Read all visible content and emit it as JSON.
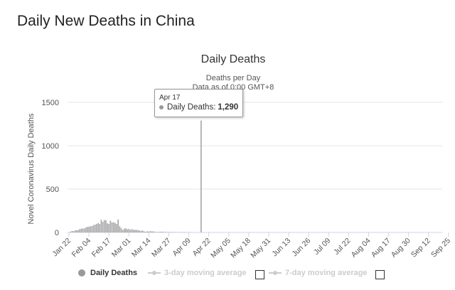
{
  "page": {
    "title": "Daily New Deaths in China"
  },
  "chart_data": {
    "type": "bar",
    "title": "Daily Deaths",
    "subtitle_line1": "Deaths per Day",
    "subtitle_line2": "Data as of 0:00 GMT+8",
    "ylabel": "Novel Coronavirus Daily Deaths",
    "xlabel": "",
    "ylim": [
      0,
      1500
    ],
    "yticks": [
      "0",
      "500",
      "1000",
      "1500"
    ],
    "xticks": [
      "Jan 22",
      "Feb 04",
      "Feb 17",
      "Mar 01",
      "Mar 14",
      "Mar 27",
      "Apr 09",
      "Apr 22",
      "May 05",
      "May 18",
      "May 31",
      "Jun 13",
      "Jun 26",
      "Jul 09",
      "Jul 22",
      "Aug 04",
      "Aug 17",
      "Aug 30",
      "Sep 12",
      "Sep 25"
    ],
    "start_date": "2020-01-22",
    "series": [
      {
        "name": "Daily Deaths",
        "color": "#a6a6a6",
        "values": [
          0,
          8,
          16,
          15,
          24,
          26,
          26,
          38,
          43,
          46,
          45,
          57,
          64,
          65,
          73,
          73,
          86,
          89,
          97,
          108,
          97,
          146,
          121,
          143,
          142,
          105,
          98,
          136,
          114,
          118,
          109,
          97,
          150,
          71,
          52,
          29,
          44,
          47,
          35,
          42,
          31,
          38,
          31,
          30,
          28,
          27,
          22,
          17,
          22,
          11,
          7,
          13,
          10,
          14,
          13,
          11,
          8,
          3,
          7,
          6,
          9,
          7,
          4,
          6,
          5,
          3,
          5,
          4,
          4,
          3,
          3,
          1,
          3,
          2,
          4,
          4,
          1,
          0,
          1,
          2,
          0,
          1,
          0,
          0,
          0,
          0,
          1290,
          0,
          0,
          0,
          0,
          0,
          0,
          0,
          0,
          0,
          0,
          0,
          0,
          0,
          0,
          0,
          0,
          0,
          0,
          0,
          0,
          0,
          0,
          0,
          0,
          0,
          0,
          0,
          0,
          0,
          0,
          0,
          0,
          0,
          0,
          0,
          0,
          0,
          0,
          0,
          0,
          0,
          0,
          0,
          0,
          0,
          0,
          0,
          0,
          0,
          0,
          0,
          0,
          0,
          0,
          0,
          0,
          0,
          0,
          0,
          0,
          0,
          0,
          0,
          0,
          0,
          0,
          0,
          0,
          0,
          0,
          0,
          0,
          0,
          0,
          0,
          0,
          0,
          0,
          0,
          0,
          0,
          0,
          0,
          0,
          0,
          0,
          0,
          0,
          0,
          0,
          0,
          0,
          0,
          0,
          0,
          0,
          0,
          0,
          0,
          0,
          0,
          0,
          0,
          0,
          0,
          0,
          0,
          0,
          0,
          0,
          0,
          0,
          0,
          0,
          0,
          0,
          0,
          0,
          0,
          0,
          0,
          0,
          0,
          0,
          0,
          0,
          0,
          0,
          0,
          0,
          0,
          0,
          0,
          0,
          0,
          0,
          0,
          0,
          0,
          0,
          0,
          0,
          0,
          0,
          0,
          0,
          0,
          0,
          0,
          0,
          0,
          0,
          0,
          0,
          0,
          0,
          0,
          0,
          0,
          0,
          0,
          0,
          0,
          0,
          0,
          0,
          0,
          0,
          0,
          0,
          0,
          0,
          0,
          0,
          0,
          0,
          0,
          0,
          0,
          0,
          0,
          0,
          0,
          0,
          0,
          0,
          0,
          0
        ]
      },
      {
        "name": "3-day moving average",
        "color": "#cccccc"
      },
      {
        "name": "7-day moving average",
        "color": "#cccccc"
      }
    ],
    "grid": true,
    "legend_position": "bottom-center",
    "tooltip": {
      "date": "Apr 17",
      "label": "Daily Deaths:",
      "value": "1,290"
    }
  }
}
